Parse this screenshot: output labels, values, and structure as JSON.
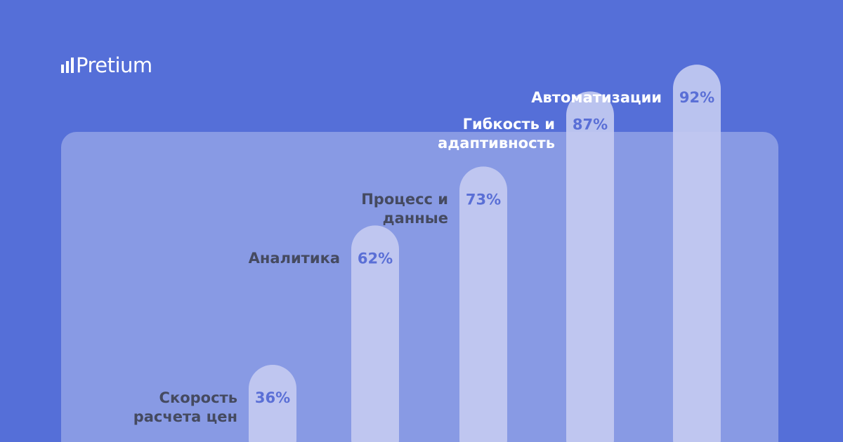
{
  "brand": "Pretium",
  "chart_data": {
    "type": "bar",
    "categories": [
      "Скорость расчета цен",
      "Аналитика",
      "Процесс и данные",
      "Гибкость и адаптивность",
      "Автоматизации"
    ],
    "values": [
      36,
      62,
      73,
      87,
      92
    ],
    "value_labels": [
      "36%",
      "62%",
      "73%",
      "87%",
      "92%"
    ],
    "color": "#c3caf1"
  }
}
